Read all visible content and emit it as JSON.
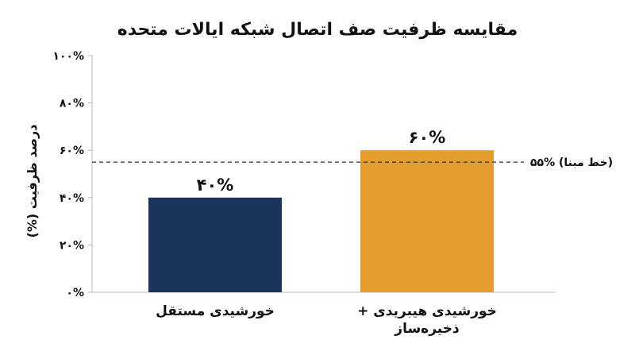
{
  "chart_data": {
    "type": "bar",
    "title": "مقایسه ظرفیت صف اتصال شبکه ایالات متحده",
    "ylabel": "درصد ظرفیت (%)",
    "xlabel": "",
    "ylim": [
      0,
      100
    ],
    "yticks": [
      0,
      20,
      40,
      60,
      80,
      100
    ],
    "ytick_labels": [
      "۰%",
      "۲۰%",
      "۴۰%",
      "۶۰%",
      "۸۰%",
      "۱۰۰%"
    ],
    "categories": [
      [
        "خورشیدی مستقل"
      ],
      [
        "خورشیدی هیبریدی +",
        "ذخیره‌ساز"
      ]
    ],
    "values": [
      40,
      60
    ],
    "value_labels": [
      "۴۰%",
      "۶۰%"
    ],
    "colors": [
      "#1b345c",
      "#e39c2e"
    ],
    "reference_line": {
      "value": 55,
      "label": "۵۵% (خط مبنا)",
      "color": "#1b345c",
      "style": "dashed"
    },
    "grid": false
  }
}
